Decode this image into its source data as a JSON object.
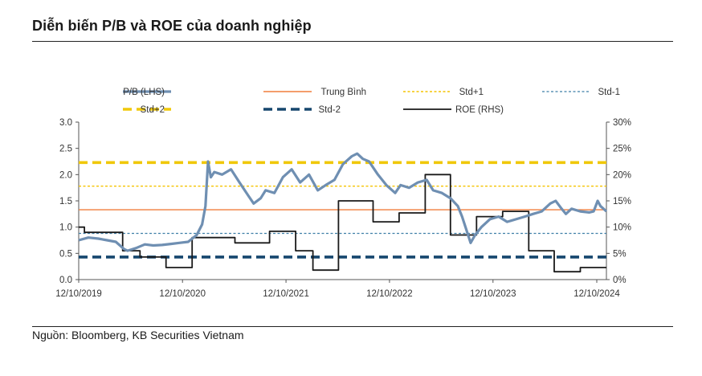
{
  "page": {
    "title": "Diễn biến P/B và ROE của doanh nghiệp",
    "source": "Nguồn: Bloomberg, KB Securities Vietnam"
  },
  "colors": {
    "pb": "#6f8fb2",
    "mean": "#f07d3c",
    "std_plus1": "#f5c400",
    "std_minus1": "#3f7fa8",
    "std_plus2": "#f0c80a",
    "std_minus2": "#16476e",
    "roe": "#1a1a1a"
  },
  "chart_data": {
    "type": "line",
    "title": "",
    "x_ticks": [
      "12/10/2019",
      "12/10/2020",
      "12/10/2021",
      "12/10/2022",
      "12/10/2023",
      "12/10/2024"
    ],
    "x_range": [
      "2019-10-12",
      "2024-11-15"
    ],
    "left_axis": {
      "label": "",
      "ylim": [
        0,
        3.0
      ],
      "ticks": [
        "0.0",
        "0.5",
        "1.0",
        "1.5",
        "2.0",
        "2.5",
        "3.0"
      ]
    },
    "right_axis": {
      "label": "",
      "ylim": [
        0,
        30
      ],
      "ticks": [
        "0%",
        "5%",
        "10%",
        "15%",
        "20%",
        "25%",
        "30%"
      ]
    },
    "legend_position": "top",
    "series": [
      {
        "name": "P/B (LHS)",
        "axis": "left",
        "style": "line",
        "points": [
          [
            "2019-10-12",
            0.75
          ],
          [
            "2019-11-15",
            0.8
          ],
          [
            "2019-12-20",
            0.78
          ],
          [
            "2020-01-20",
            0.75
          ],
          [
            "2020-02-20",
            0.72
          ],
          [
            "2020-03-20",
            0.58
          ],
          [
            "2020-04-01",
            0.55
          ],
          [
            "2020-05-01",
            0.6
          ],
          [
            "2020-06-01",
            0.67
          ],
          [
            "2020-07-01",
            0.65
          ],
          [
            "2020-08-01",
            0.66
          ],
          [
            "2020-09-01",
            0.68
          ],
          [
            "2020-10-01",
            0.7
          ],
          [
            "2020-11-01",
            0.72
          ],
          [
            "2020-12-01",
            0.85
          ],
          [
            "2020-12-20",
            1.05
          ],
          [
            "2021-01-01",
            1.4
          ],
          [
            "2021-01-10",
            2.25
          ],
          [
            "2021-01-20",
            1.95
          ],
          [
            "2021-02-01",
            2.05
          ],
          [
            "2021-03-01",
            2.0
          ],
          [
            "2021-04-01",
            2.1
          ],
          [
            "2021-05-01",
            1.85
          ],
          [
            "2021-06-01",
            1.6
          ],
          [
            "2021-06-20",
            1.45
          ],
          [
            "2021-07-15",
            1.55
          ],
          [
            "2021-08-01",
            1.7
          ],
          [
            "2021-09-01",
            1.65
          ],
          [
            "2021-10-01",
            1.95
          ],
          [
            "2021-11-01",
            2.1
          ],
          [
            "2021-12-01",
            1.85
          ],
          [
            "2022-01-01",
            2.0
          ],
          [
            "2022-02-01",
            1.7
          ],
          [
            "2022-03-01",
            1.8
          ],
          [
            "2022-04-01",
            1.9
          ],
          [
            "2022-05-01",
            2.2
          ],
          [
            "2022-06-01",
            2.35
          ],
          [
            "2022-06-20",
            2.4
          ],
          [
            "2022-07-10",
            2.3
          ],
          [
            "2022-08-01",
            2.25
          ],
          [
            "2022-09-01",
            2.0
          ],
          [
            "2022-10-01",
            1.8
          ],
          [
            "2022-11-01",
            1.65
          ],
          [
            "2022-11-20",
            1.8
          ],
          [
            "2022-12-20",
            1.75
          ],
          [
            "2023-01-20",
            1.85
          ],
          [
            "2023-02-20",
            1.9
          ],
          [
            "2023-03-15",
            1.7
          ],
          [
            "2023-04-15",
            1.65
          ],
          [
            "2023-05-15",
            1.55
          ],
          [
            "2023-06-10",
            1.4
          ],
          [
            "2023-06-25",
            1.2
          ],
          [
            "2023-07-10",
            0.95
          ],
          [
            "2023-07-25",
            0.7
          ],
          [
            "2023-08-10",
            0.85
          ],
          [
            "2023-09-01",
            1.0
          ],
          [
            "2023-10-01",
            1.15
          ],
          [
            "2023-11-01",
            1.2
          ],
          [
            "2023-12-01",
            1.1
          ],
          [
            "2024-01-01",
            1.15
          ],
          [
            "2024-02-01",
            1.2
          ],
          [
            "2024-03-01",
            1.25
          ],
          [
            "2024-04-01",
            1.3
          ],
          [
            "2024-05-01",
            1.45
          ],
          [
            "2024-05-20",
            1.5
          ],
          [
            "2024-06-10",
            1.35
          ],
          [
            "2024-06-25",
            1.25
          ],
          [
            "2024-07-15",
            1.35
          ],
          [
            "2024-08-15",
            1.3
          ],
          [
            "2024-09-15",
            1.28
          ],
          [
            "2024-10-01",
            1.3
          ],
          [
            "2024-10-15",
            1.5
          ],
          [
            "2024-10-25",
            1.4
          ],
          [
            "2024-11-15",
            1.3
          ]
        ]
      },
      {
        "name": "Trung Bình",
        "axis": "left",
        "style": "flat",
        "value": 1.33
      },
      {
        "name": "Std+1",
        "axis": "left",
        "style": "flat",
        "value": 1.78
      },
      {
        "name": "Std-1",
        "axis": "left",
        "style": "flat",
        "value": 0.88
      },
      {
        "name": "Std+2",
        "axis": "left",
        "style": "flat",
        "value": 2.23
      },
      {
        "name": "Std-2",
        "axis": "left",
        "style": "flat",
        "value": 0.43
      },
      {
        "name": "ROE (RHS)",
        "axis": "right",
        "style": "step",
        "points": [
          [
            "2019-10-12",
            10.0
          ],
          [
            "2019-11-01",
            9.0
          ],
          [
            "2020-03-15",
            5.5
          ],
          [
            "2020-05-15",
            4.3
          ],
          [
            "2020-08-15",
            2.3
          ],
          [
            "2020-11-15",
            8.0
          ],
          [
            "2021-04-15",
            7.0
          ],
          [
            "2021-08-15",
            9.2
          ],
          [
            "2021-11-15",
            5.5
          ],
          [
            "2022-01-15",
            1.8
          ],
          [
            "2022-04-15",
            15.0
          ],
          [
            "2022-08-15",
            11.0
          ],
          [
            "2022-11-15",
            12.7
          ],
          [
            "2023-02-15",
            20.0
          ],
          [
            "2023-05-15",
            8.5
          ],
          [
            "2023-08-15",
            12.0
          ],
          [
            "2023-11-15",
            13.0
          ],
          [
            "2024-02-15",
            5.5
          ],
          [
            "2024-05-15",
            1.5
          ],
          [
            "2024-08-15",
            2.3
          ]
        ]
      }
    ]
  }
}
